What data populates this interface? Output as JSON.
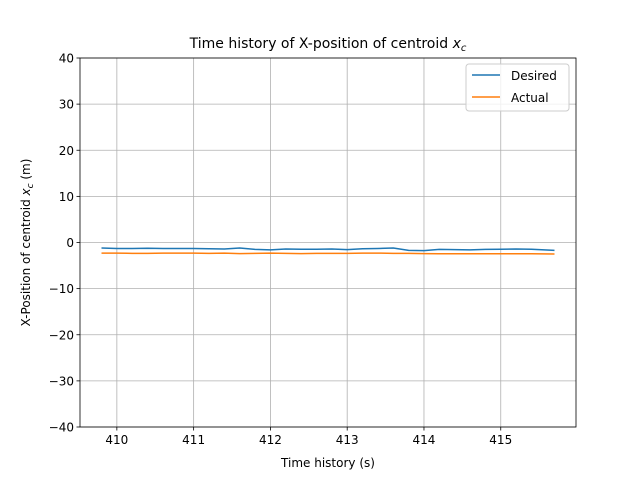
{
  "chart_data": {
    "type": "line",
    "title": "Time history of X-position of centroid x_c",
    "title_main": "Time history of X-position of centroid ",
    "title_var": "x",
    "title_sub": "c",
    "xlabel": "Time history (s)",
    "ylabel_main": "X-Position of centroid ",
    "ylabel_var": "x",
    "ylabel_sub": "c",
    "ylabel_unit": " (m)",
    "xlim": [
      409.52,
      415.98
    ],
    "ylim": [
      -40,
      40
    ],
    "xticks": [
      410,
      411,
      412,
      413,
      414,
      415
    ],
    "xtick_labels": [
      "410",
      "411",
      "412",
      "413",
      "414",
      "415"
    ],
    "yticks": [
      -40,
      -30,
      -20,
      -10,
      0,
      10,
      20,
      30,
      40
    ],
    "ytick_labels": [
      "−40",
      "−30",
      "−20",
      "−10",
      "0",
      "10",
      "20",
      "30",
      "40"
    ],
    "grid": true,
    "legend_position": "top-right",
    "series": [
      {
        "name": "Desired",
        "color": "#1f77b4",
        "x": [
          409.8,
          410.0,
          410.2,
          410.4,
          410.6,
          410.8,
          411.0,
          411.2,
          411.4,
          411.6,
          411.8,
          412.0,
          412.2,
          412.4,
          412.6,
          412.8,
          413.0,
          413.2,
          413.4,
          413.6,
          413.8,
          414.0,
          414.2,
          414.4,
          414.6,
          414.8,
          415.0,
          415.2,
          415.4,
          415.7
        ],
        "y": [
          -1.2,
          -1.3,
          -1.3,
          -1.25,
          -1.3,
          -1.3,
          -1.3,
          -1.35,
          -1.4,
          -1.2,
          -1.5,
          -1.6,
          -1.4,
          -1.45,
          -1.45,
          -1.4,
          -1.55,
          -1.35,
          -1.3,
          -1.2,
          -1.7,
          -1.75,
          -1.5,
          -1.55,
          -1.6,
          -1.5,
          -1.45,
          -1.4,
          -1.45,
          -1.7
        ]
      },
      {
        "name": "Actual",
        "color": "#ff7f0e",
        "x": [
          409.8,
          410.0,
          410.2,
          410.4,
          410.6,
          410.8,
          411.0,
          411.2,
          411.4,
          411.6,
          411.8,
          412.0,
          412.2,
          412.4,
          412.6,
          412.8,
          413.0,
          413.2,
          413.4,
          413.6,
          413.8,
          414.0,
          414.2,
          414.4,
          414.6,
          414.8,
          415.0,
          415.2,
          415.4,
          415.7
        ],
        "y": [
          -2.3,
          -2.3,
          -2.35,
          -2.35,
          -2.3,
          -2.3,
          -2.3,
          -2.35,
          -2.3,
          -2.4,
          -2.35,
          -2.3,
          -2.35,
          -2.4,
          -2.35,
          -2.35,
          -2.35,
          -2.3,
          -2.3,
          -2.35,
          -2.35,
          -2.4,
          -2.45,
          -2.45,
          -2.45,
          -2.45,
          -2.45,
          -2.45,
          -2.45,
          -2.5
        ]
      }
    ]
  }
}
